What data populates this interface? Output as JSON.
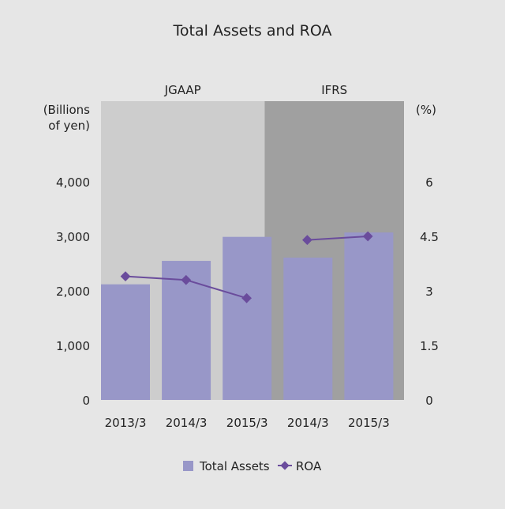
{
  "chart_data": {
    "type": "bar",
    "title": "Total Assets and ROA",
    "categories": [
      "2013/3",
      "2014/3",
      "2015/3",
      "2014/3",
      "2015/3"
    ],
    "regions": [
      {
        "label": "JGAAP",
        "from": 0,
        "to": 2,
        "color": "#cdcdcd"
      },
      {
        "label": "IFRS",
        "from": 3,
        "to": 4,
        "color": "#a0a0a0"
      }
    ],
    "ylabel_left": [
      "(Billions",
      "of yen)"
    ],
    "ylabel_right": "(%)",
    "ylim_left": [
      0,
      4000
    ],
    "ylim_right": [
      0,
      6
    ],
    "yticks_left": [
      "0",
      "1,000",
      "2,000",
      "3,000",
      "4,000"
    ],
    "yticks_right": [
      "0",
      "1.5",
      "3",
      "4.5",
      "6"
    ],
    "series": [
      {
        "name": "Total Assets",
        "type": "bar",
        "axis": "left",
        "color": "#9897c8",
        "values": [
          2120,
          2550,
          2990,
          2610,
          3070
        ]
      },
      {
        "name": "ROA",
        "type": "line",
        "axis": "right",
        "color": "#6a4c9c",
        "values": [
          3.4,
          3.3,
          2.8,
          4.4,
          4.5
        ]
      }
    ],
    "legend": "bottom",
    "grid": false
  }
}
